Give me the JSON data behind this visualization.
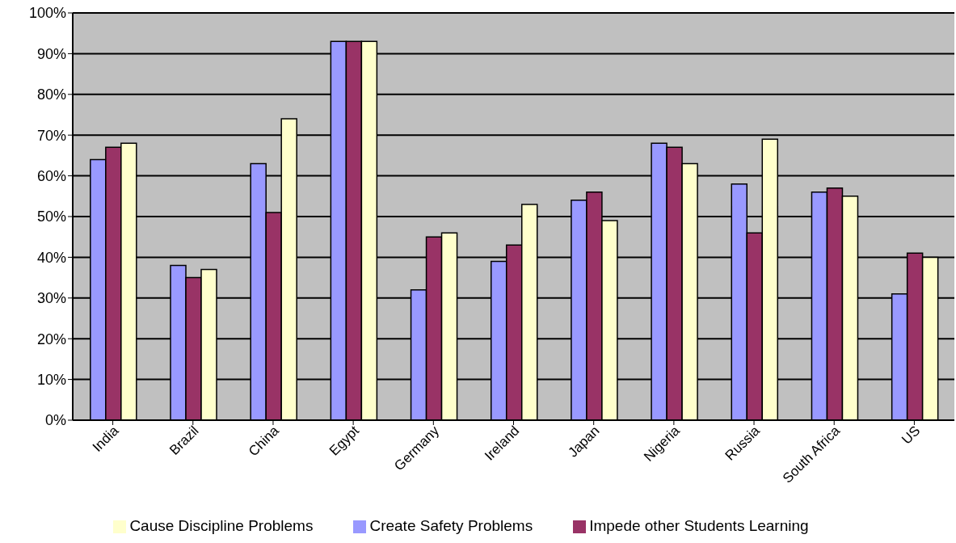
{
  "chart_data": {
    "type": "bar",
    "categories": [
      "India",
      "Brazil",
      "China",
      "Egypt",
      "Germany",
      "Ireland",
      "Japan",
      "Nigeria",
      "Russia",
      "South Africa",
      "US"
    ],
    "series": [
      {
        "name": "Create Safety Problems",
        "color": "#9999ff",
        "values": [
          64,
          38,
          63,
          93,
          32,
          39,
          54,
          68,
          58,
          56,
          31
        ]
      },
      {
        "name": "Impede other Students Learning",
        "color": "#993366",
        "values": [
          67,
          35,
          51,
          93,
          45,
          43,
          56,
          67,
          46,
          57,
          41
        ]
      },
      {
        "name": "Cause Discipline Problems",
        "color": "#ffffcc",
        "values": [
          68,
          37,
          74,
          93,
          46,
          53,
          49,
          63,
          69,
          55,
          40
        ]
      }
    ],
    "ylim": [
      0,
      100
    ],
    "yticks": [
      {
        "value": 0,
        "label": "0%"
      },
      {
        "value": 10,
        "label": "10%"
      },
      {
        "value": 20,
        "label": "20%"
      },
      {
        "value": 30,
        "label": "30%"
      },
      {
        "value": 40,
        "label": "40%"
      },
      {
        "value": 50,
        "label": "50%"
      },
      {
        "value": 60,
        "label": "60%"
      },
      {
        "value": 70,
        "label": "70%"
      },
      {
        "value": 80,
        "label": "80%"
      },
      {
        "value": 90,
        "label": "90%"
      },
      {
        "value": 100,
        "label": "100%"
      }
    ],
    "grid": "y",
    "legend": "bottom"
  }
}
